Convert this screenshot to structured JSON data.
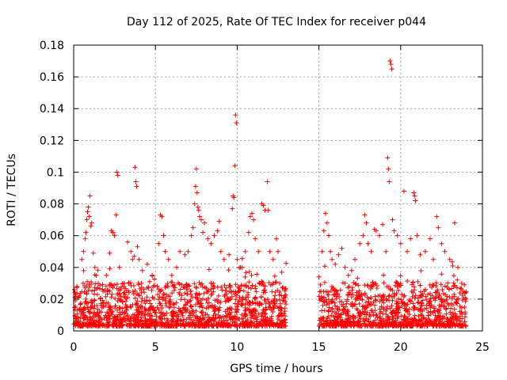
{
  "chart_data": {
    "type": "scatter",
    "title": "Day 112 of 2025, Rate Of TEC Index for receiver p044",
    "xlabel": "GPS time / hours",
    "ylabel": "ROTI / TECUs",
    "xlim": [
      0,
      25
    ],
    "ylim": [
      0,
      0.18
    ],
    "xticks": [
      0,
      5,
      10,
      15,
      20,
      25
    ],
    "xtick_labels": [
      "0",
      "5",
      "10",
      "15",
      "20",
      "25"
    ],
    "yticks": [
      0,
      0.02,
      0.04,
      0.06,
      0.08,
      0.1,
      0.12,
      0.14,
      0.16,
      0.18
    ],
    "ytick_labels": [
      "0",
      "0.02",
      "0.04",
      "0.06",
      "0.08",
      "0.1",
      "0.12",
      "0.14",
      "0.16",
      "0.18"
    ],
    "grid": true,
    "marker": "+",
    "color": "#ff0000",
    "gap_hours": [
      13.0,
      15.0
    ],
    "series": [
      {
        "name": "ROTI",
        "points": [
          [
            0.1,
            0.019
          ],
          [
            0.2,
            0.028
          ],
          [
            0.35,
            0.022
          ],
          [
            0.5,
            0.045
          ],
          [
            0.6,
            0.05
          ],
          [
            0.7,
            0.058
          ],
          [
            0.75,
            0.062
          ],
          [
            0.8,
            0.07
          ],
          [
            0.85,
            0.075
          ],
          [
            0.9,
            0.078
          ],
          [
            0.95,
            0.072
          ],
          [
            1.0,
            0.085
          ],
          [
            1.05,
            0.066
          ],
          [
            1.1,
            0.068
          ],
          [
            1.2,
            0.049
          ],
          [
            1.3,
            0.04
          ],
          [
            1.5,
            0.03
          ],
          [
            1.8,
            0.025
          ],
          [
            2.0,
            0.035
          ],
          [
            2.2,
            0.049
          ],
          [
            2.3,
            0.063
          ],
          [
            2.4,
            0.062
          ],
          [
            2.5,
            0.06
          ],
          [
            2.6,
            0.073
          ],
          [
            2.65,
            0.1
          ],
          [
            2.7,
            0.098
          ],
          [
            2.8,
            0.04
          ],
          [
            3.0,
            0.03
          ],
          [
            3.3,
            0.056
          ],
          [
            3.5,
            0.05
          ],
          [
            3.6,
            0.045
          ],
          [
            3.7,
            0.047
          ],
          [
            3.75,
            0.103
          ],
          [
            3.8,
            0.094
          ],
          [
            3.85,
            0.091
          ],
          [
            3.9,
            0.053
          ],
          [
            4.0,
            0.045
          ],
          [
            4.2,
            0.038
          ],
          [
            4.5,
            0.042
          ],
          [
            4.8,
            0.035
          ],
          [
            5.2,
            0.055
          ],
          [
            5.3,
            0.073
          ],
          [
            5.4,
            0.072
          ],
          [
            5.5,
            0.06
          ],
          [
            5.6,
            0.05
          ],
          [
            5.8,
            0.045
          ],
          [
            6.0,
            0.035
          ],
          [
            6.3,
            0.04
          ],
          [
            6.5,
            0.05
          ],
          [
            6.8,
            0.048
          ],
          [
            7.0,
            0.05
          ],
          [
            7.2,
            0.06
          ],
          [
            7.3,
            0.065
          ],
          [
            7.4,
            0.08
          ],
          [
            7.45,
            0.091
          ],
          [
            7.5,
            0.102
          ],
          [
            7.55,
            0.087
          ],
          [
            7.6,
            0.078
          ],
          [
            7.65,
            0.076
          ],
          [
            7.7,
            0.072
          ],
          [
            7.8,
            0.07
          ],
          [
            7.9,
            0.062
          ],
          [
            8.0,
            0.068
          ],
          [
            8.2,
            0.058
          ],
          [
            8.4,
            0.055
          ],
          [
            8.6,
            0.06
          ],
          [
            8.8,
            0.063
          ],
          [
            8.9,
            0.069
          ],
          [
            9.0,
            0.05
          ],
          [
            9.2,
            0.045
          ],
          [
            9.5,
            0.048
          ],
          [
            9.7,
            0.077
          ],
          [
            9.75,
            0.085
          ],
          [
            9.8,
            0.084
          ],
          [
            9.85,
            0.104
          ],
          [
            9.9,
            0.136
          ],
          [
            9.95,
            0.131
          ],
          [
            10.0,
            0.045
          ],
          [
            10.2,
            0.04
          ],
          [
            10.5,
            0.05
          ],
          [
            10.7,
            0.062
          ],
          [
            10.8,
            0.072
          ],
          [
            10.9,
            0.074
          ],
          [
            11.0,
            0.07
          ],
          [
            11.1,
            0.058
          ],
          [
            11.3,
            0.05
          ],
          [
            11.5,
            0.08
          ],
          [
            11.6,
            0.079
          ],
          [
            11.7,
            0.076
          ],
          [
            11.85,
            0.094
          ],
          [
            11.9,
            0.076
          ],
          [
            12.0,
            0.05
          ],
          [
            12.2,
            0.045
          ],
          [
            12.4,
            0.058
          ],
          [
            12.5,
            0.05
          ],
          [
            12.6,
            0.03
          ],
          [
            12.9,
            0.022
          ],
          [
            15.0,
            0.034
          ],
          [
            15.2,
            0.05
          ],
          [
            15.3,
            0.063
          ],
          [
            15.4,
            0.074
          ],
          [
            15.5,
            0.068
          ],
          [
            15.6,
            0.06
          ],
          [
            15.7,
            0.05
          ],
          [
            15.8,
            0.045
          ],
          [
            16.0,
            0.042
          ],
          [
            16.2,
            0.048
          ],
          [
            16.4,
            0.052
          ],
          [
            16.6,
            0.04
          ],
          [
            16.8,
            0.035
          ],
          [
            17.0,
            0.038
          ],
          [
            17.2,
            0.045
          ],
          [
            17.5,
            0.055
          ],
          [
            17.7,
            0.06
          ],
          [
            17.8,
            0.073
          ],
          [
            17.9,
            0.068
          ],
          [
            18.0,
            0.055
          ],
          [
            18.2,
            0.05
          ],
          [
            18.4,
            0.064
          ],
          [
            18.5,
            0.063
          ],
          [
            18.7,
            0.06
          ],
          [
            18.9,
            0.067
          ],
          [
            19.1,
            0.05
          ],
          [
            19.2,
            0.109
          ],
          [
            19.25,
            0.102
          ],
          [
            19.3,
            0.094
          ],
          [
            19.35,
            0.17
          ],
          [
            19.4,
            0.168
          ],
          [
            19.45,
            0.165
          ],
          [
            19.5,
            0.07
          ],
          [
            19.6,
            0.063
          ],
          [
            19.8,
            0.06
          ],
          [
            20.0,
            0.055
          ],
          [
            20.2,
            0.088
          ],
          [
            20.4,
            0.05
          ],
          [
            20.6,
            0.058
          ],
          [
            20.8,
            0.087
          ],
          [
            20.85,
            0.085
          ],
          [
            20.9,
            0.082
          ],
          [
            21.0,
            0.06
          ],
          [
            21.2,
            0.048
          ],
          [
            21.5,
            0.05
          ],
          [
            21.8,
            0.058
          ],
          [
            22.0,
            0.045
          ],
          [
            22.2,
            0.072
          ],
          [
            22.3,
            0.065
          ],
          [
            22.5,
            0.055
          ],
          [
            22.7,
            0.05
          ],
          [
            23.0,
            0.045
          ],
          [
            23.3,
            0.068
          ],
          [
            23.5,
            0.04
          ],
          [
            23.8,
            0.025
          ],
          [
            24.0,
            0.02
          ]
        ]
      }
    ]
  }
}
